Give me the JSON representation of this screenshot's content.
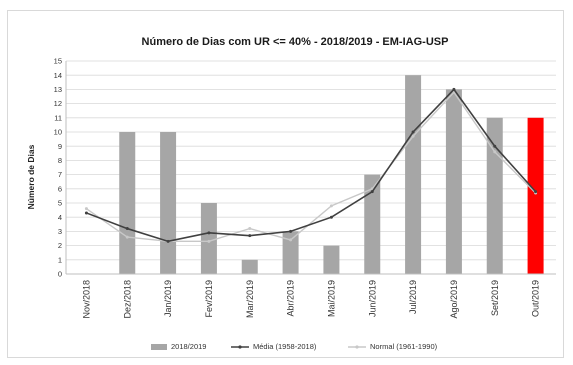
{
  "chart_data": {
    "type": "bar",
    "title": "Número de Dias com UR <= 40% - 2018/2019 - EM-IAG-USP",
    "ylabel": "Número de Dias",
    "xlabel": "",
    "ylim": [
      0,
      15
    ],
    "yticks": [
      0,
      1,
      2,
      3,
      4,
      5,
      6,
      7,
      8,
      9,
      10,
      11,
      12,
      13,
      14,
      15
    ],
    "grid": true,
    "legend_position": "bottom",
    "categories": [
      "Nov/2018",
      "Dez/2018",
      "Jan/2019",
      "Fev/2019",
      "Mar/2019",
      "Abr/2019",
      "Mai/2019",
      "Jun/2019",
      "Jul/2019",
      "Ago/2019",
      "Set/2019",
      "Out/2019"
    ],
    "series": [
      {
        "name": "2018/2019",
        "kind": "bar",
        "color": "#a6a6a6",
        "highlight_color": "#ff0000",
        "highlight_index": 11,
        "values": [
          0,
          10,
          10,
          5,
          1,
          3,
          2,
          7,
          14,
          13,
          11,
          11
        ]
      },
      {
        "name": "Média (1958-2018)",
        "kind": "line",
        "color": "#404040",
        "values": [
          4.3,
          3.2,
          2.3,
          2.9,
          2.7,
          3.0,
          4.0,
          5.8,
          10.0,
          13.0,
          9.0,
          5.8
        ]
      },
      {
        "name": "Normal (1961-1990)",
        "kind": "line",
        "color": "#c8c8c8",
        "values": [
          4.6,
          2.6,
          2.3,
          2.3,
          3.2,
          2.4,
          4.8,
          6.0,
          9.7,
          12.8,
          8.6,
          5.7
        ]
      }
    ]
  }
}
